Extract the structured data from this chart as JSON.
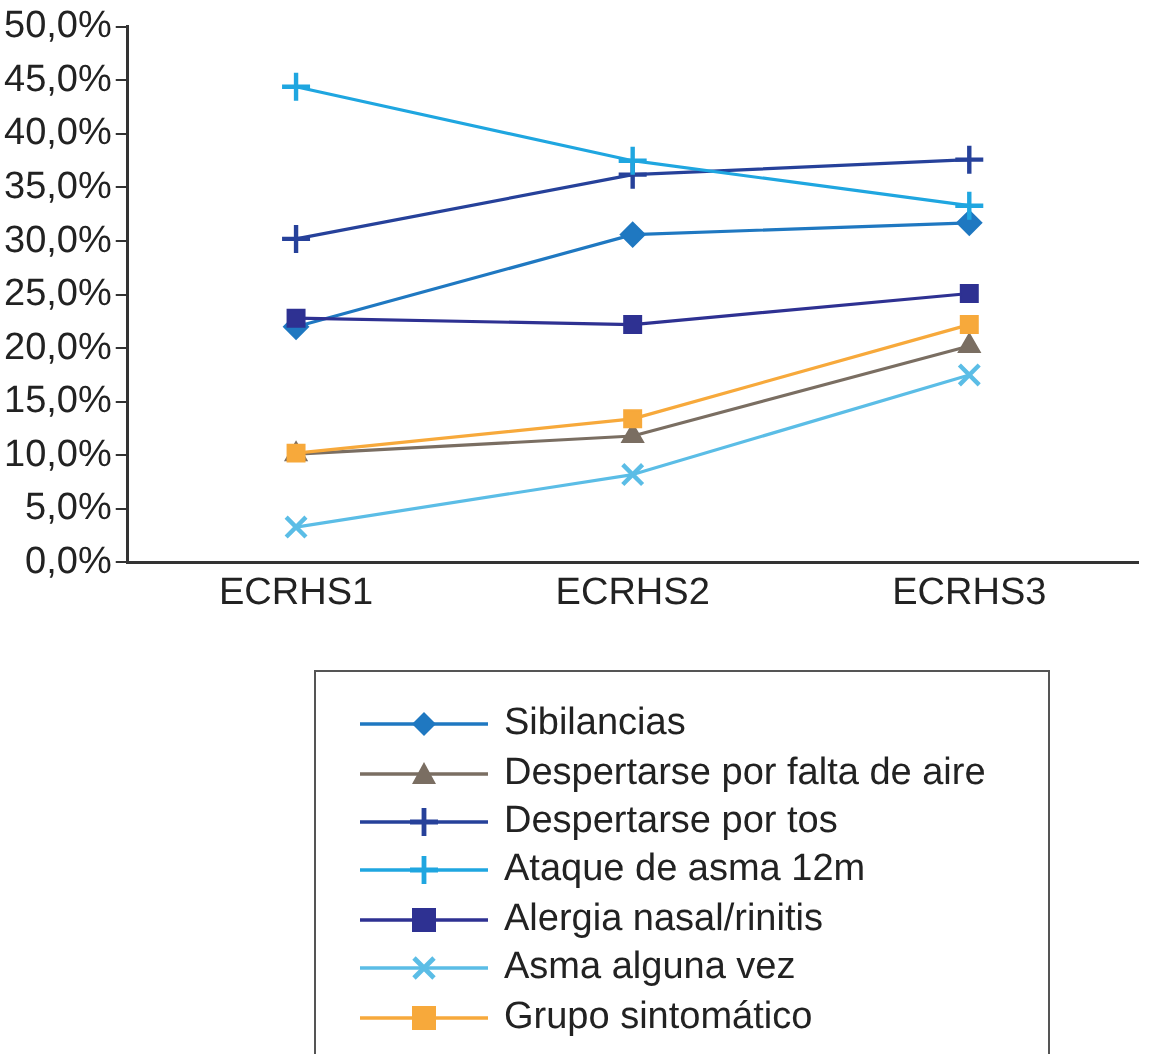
{
  "chart_data": {
    "type": "line",
    "categories": [
      "ECRHS1",
      "ECRHS2",
      "ECRHS3"
    ],
    "ylim": [
      0,
      50
    ],
    "yticks": [
      {
        "value": 0,
        "label": "0,0%"
      },
      {
        "value": 5,
        "label": "5,0%"
      },
      {
        "value": 10,
        "label": "10,0%"
      },
      {
        "value": 15,
        "label": "15,0%"
      },
      {
        "value": 20,
        "label": "20,0%"
      },
      {
        "value": 25,
        "label": "25,0%"
      },
      {
        "value": 30,
        "label": "30,0%"
      },
      {
        "value": 35,
        "label": "35,0%"
      },
      {
        "value": 40,
        "label": "40,0%"
      },
      {
        "value": 45,
        "label": "45,0%"
      },
      {
        "value": 50,
        "label": "50,0%"
      }
    ],
    "grid": false,
    "legend": "bottom",
    "line_style": "solid",
    "series": [
      {
        "name": "Sibilancias",
        "color": "#1f78c1",
        "marker": "diamond",
        "values": [
          22.0,
          30.6,
          31.7
        ]
      },
      {
        "name": "Despertarse por falta de aire",
        "color": "#7a6e62",
        "marker": "triangle",
        "values": [
          10.1,
          11.8,
          20.2
        ]
      },
      {
        "name": "Despertarse por tos",
        "color": "#26419a",
        "marker": "cross",
        "values": [
          30.2,
          36.2,
          37.6
        ]
      },
      {
        "name": "Ataque de asma 12m",
        "color": "#1fa6e0",
        "marker": "cross",
        "values": [
          44.4,
          37.5,
          33.3
        ]
      },
      {
        "name": "Alergia nasal/rinitis",
        "color": "#2e3192",
        "marker": "square",
        "values": [
          22.8,
          22.2,
          25.1
        ]
      },
      {
        "name": "Asma alguna vez",
        "color": "#5bbde6",
        "marker": "x",
        "values": [
          3.3,
          8.2,
          17.5
        ]
      },
      {
        "name": "Grupo sintomático",
        "color": "#f7a93b",
        "marker": "square",
        "values": [
          10.2,
          13.4,
          22.2
        ]
      }
    ]
  }
}
